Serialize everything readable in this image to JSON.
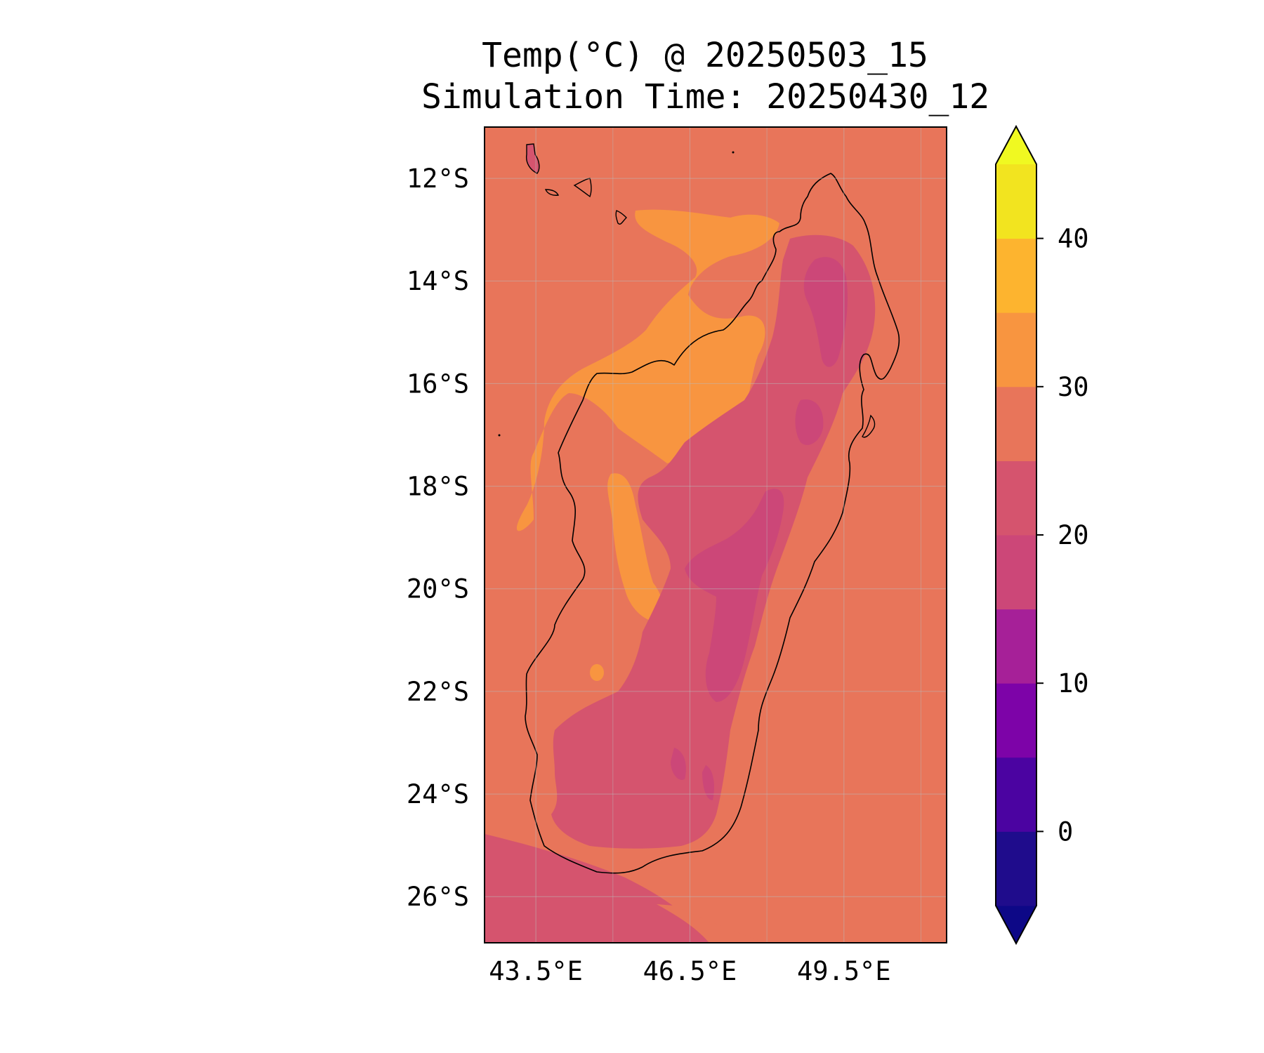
{
  "title": {
    "line1": "Temp(°C) @ 20250503_15",
    "line2": "Simulation Time: 20250430_12"
  },
  "map": {
    "lon_range": [
      42.5,
      51.5
    ],
    "lat_range": [
      -26.9,
      -11.0
    ],
    "lat_ticks": [
      {
        "value": -12,
        "label": "12°S"
      },
      {
        "value": -14,
        "label": "14°S"
      },
      {
        "value": -16,
        "label": "16°S"
      },
      {
        "value": -18,
        "label": "18°S"
      },
      {
        "value": -20,
        "label": "20°S"
      },
      {
        "value": -22,
        "label": "22°S"
      },
      {
        "value": -24,
        "label": "24°S"
      },
      {
        "value": -26,
        "label": "26°S"
      }
    ],
    "lon_ticks": [
      {
        "value": 43.5,
        "label": "43.5°E"
      },
      {
        "value": 46.5,
        "label": "46.5°E"
      },
      {
        "value": 49.5,
        "label": "49.5°E"
      }
    ],
    "gridlines": true,
    "background_level_color": "#e8755a"
  },
  "colorbar": {
    "levels": [
      -5,
      0,
      5,
      10,
      15,
      20,
      25,
      30,
      35,
      40,
      45
    ],
    "colors": [
      "#1f0c8c",
      "#4b03a1",
      "#7d03a8",
      "#a62098",
      "#cc4778",
      "#d5546e",
      "#e8755a",
      "#f89540",
      "#fdb42f",
      "#f2e41f"
    ],
    "under_color": "#0d0887",
    "over_color": "#f0f921",
    "extend": "both",
    "ticks": [
      {
        "value": 0,
        "label": "0"
      },
      {
        "value": 10,
        "label": "10"
      },
      {
        "value": 20,
        "label": "20"
      },
      {
        "value": 30,
        "label": "30"
      },
      {
        "value": 40,
        "label": "40"
      }
    ]
  }
}
